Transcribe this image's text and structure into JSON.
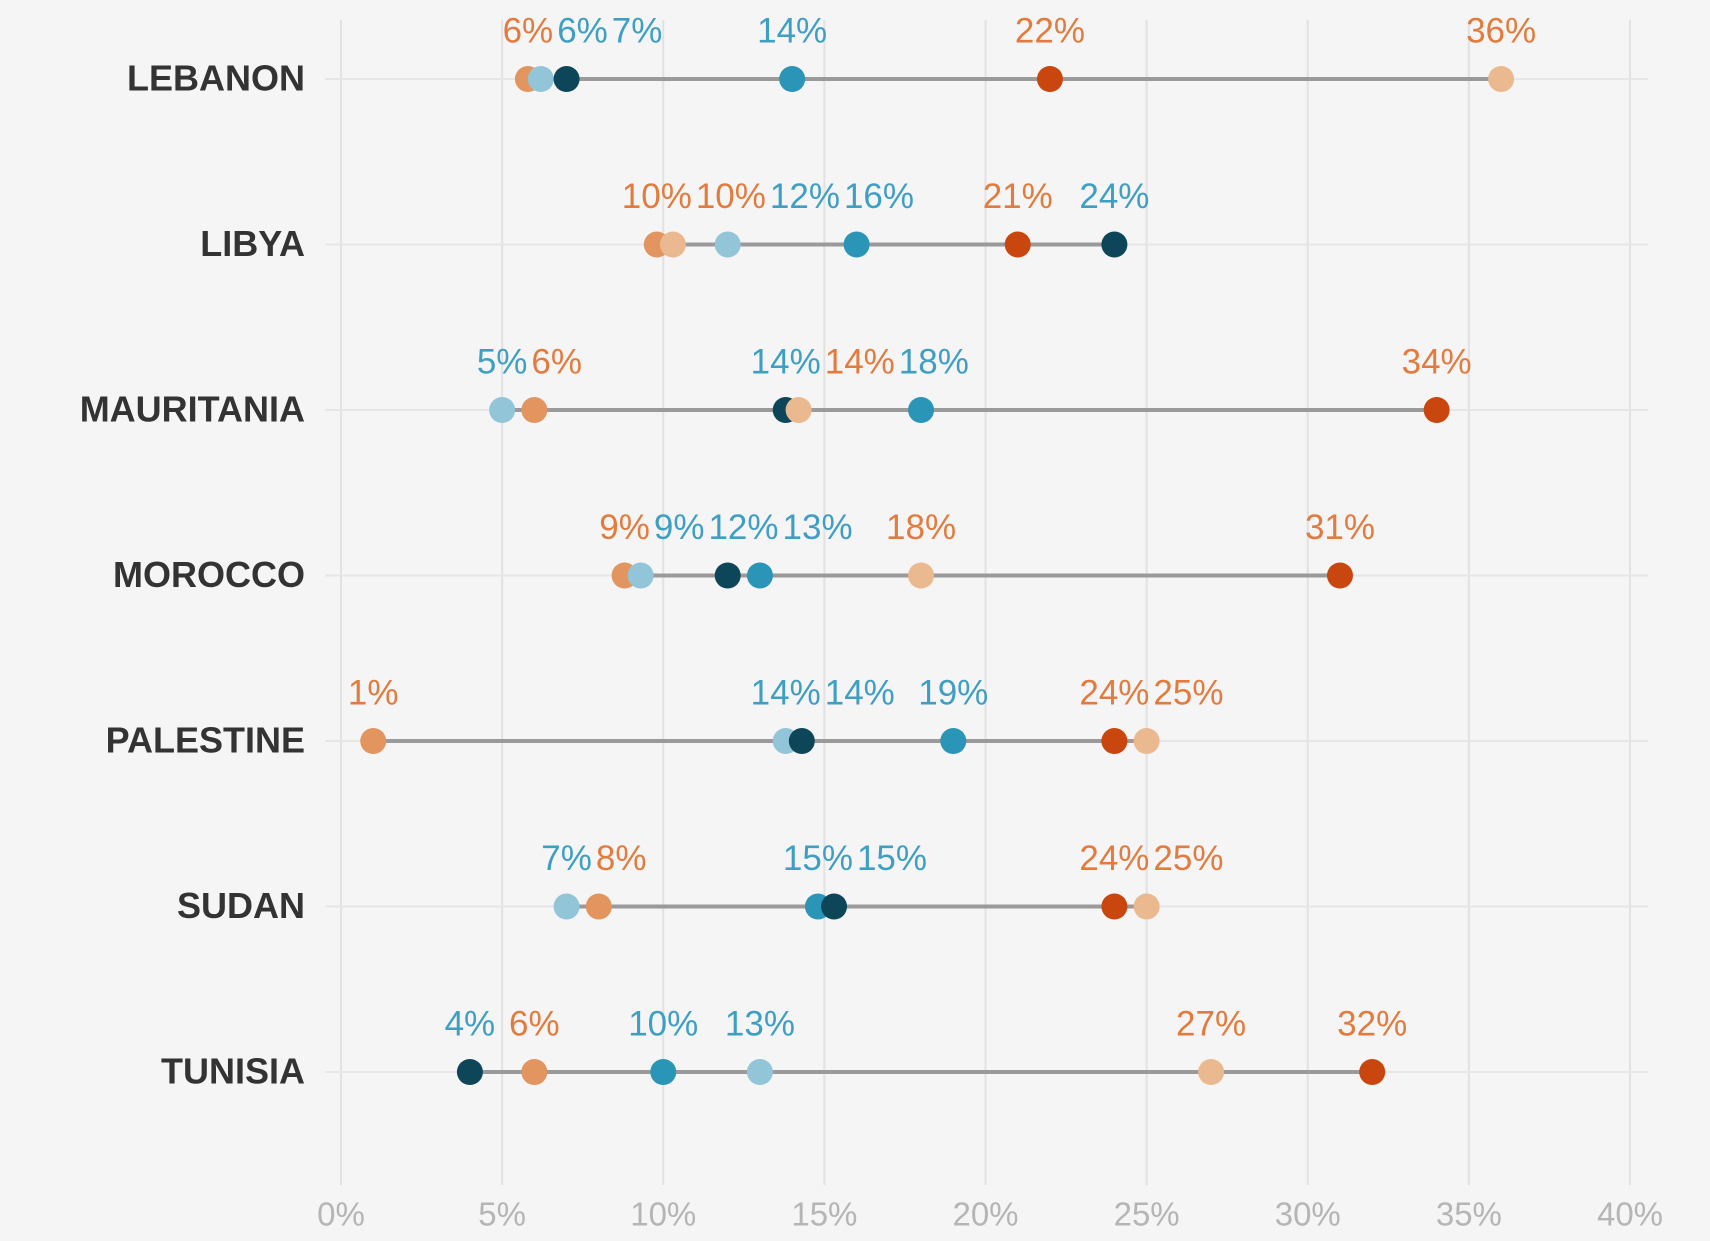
{
  "chart_data": {
    "type": "dot",
    "categories": [
      "LEBANON",
      "LIBYA",
      "MAURITANIA",
      "MOROCCO",
      "PALESTINE",
      "SUDAN",
      "TUNISIA"
    ],
    "series": [
      {
        "color": "#ebb98f",
        "label_color": "#e27b3e",
        "values": [
          36,
          10.3,
          14.2,
          18,
          25,
          25,
          27
        ],
        "value_labels": [
          "36%",
          "10%",
          "14%",
          "18%",
          "25%",
          "25%",
          "27%"
        ]
      },
      {
        "color": "#e2955f",
        "label_color": "#e27b3e",
        "values": [
          5.8,
          9.8,
          6,
          8.8,
          1,
          8,
          6
        ],
        "value_labels": [
          "6%",
          "10%",
          "6%",
          "9%",
          "1%",
          "8%",
          "6%"
        ]
      },
      {
        "color": "#c9460f",
        "label_color": "#e27b3e",
        "values": [
          22,
          21,
          34,
          31,
          24,
          24,
          32
        ],
        "value_labels": [
          "22%",
          "21%",
          "34%",
          "31%",
          "24%",
          "24%",
          "32%"
        ]
      },
      {
        "color": "#93c5d9",
        "label_color": "#3f9fc3",
        "values": [
          6.2,
          12,
          5,
          9.3,
          13.8,
          7,
          13
        ],
        "value_labels": [
          "6%",
          "12%",
          "5%",
          "9%",
          "14%",
          "7%",
          "13%"
        ]
      },
      {
        "color": "#2b95b7",
        "label_color": "#3f9fc3",
        "values": [
          14,
          16,
          18,
          13,
          19,
          14.8,
          10
        ],
        "value_labels": [
          "14%",
          "16%",
          "18%",
          "13%",
          "19%",
          "15%",
          "10%"
        ]
      },
      {
        "color": "#0c4658",
        "label_color": "#3f9fc3",
        "values": [
          7,
          24,
          13.8,
          12,
          14.3,
          15.3,
          4
        ],
        "value_labels": [
          "7%",
          "24%",
          "14%",
          "12%",
          "14%",
          "15%",
          "4%"
        ]
      }
    ],
    "xlim": [
      0,
      40
    ],
    "xticks": [
      {
        "value": 0,
        "label": "0%"
      },
      {
        "value": 5,
        "label": "5%"
      },
      {
        "value": 10,
        "label": "10%"
      },
      {
        "value": 15,
        "label": "15%"
      },
      {
        "value": 20,
        "label": "20%"
      },
      {
        "value": 25,
        "label": "25%"
      },
      {
        "value": 30,
        "label": "30%"
      },
      {
        "value": 35,
        "label": "35%"
      },
      {
        "value": 40,
        "label": "40%"
      }
    ],
    "grid": true
  }
}
